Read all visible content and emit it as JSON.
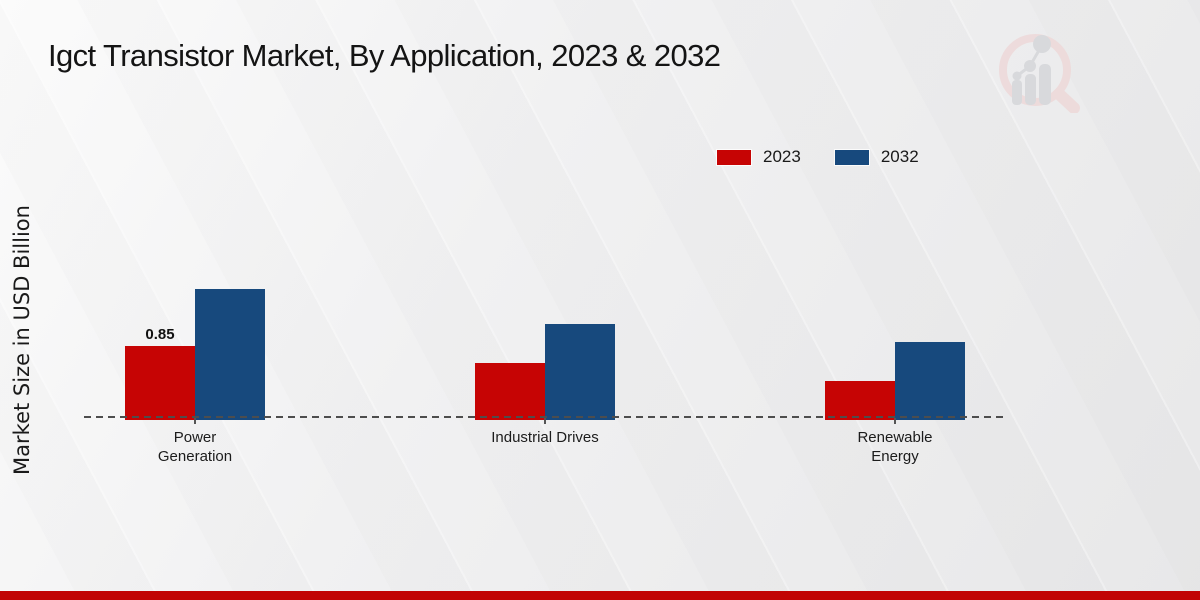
{
  "title": "Igct Transistor Market, By Application, 2023 & 2032",
  "y_axis_label": "Market Size in USD Billion",
  "legend": [
    {
      "label": "2023",
      "color": "#c60404"
    },
    {
      "label": "2032",
      "color": "#17497d"
    }
  ],
  "chart_data": {
    "type": "bar",
    "categories": [
      "Power Generation",
      "Industrial Drives",
      "Renewable Energy"
    ],
    "series": [
      {
        "name": "2023",
        "color": "#c60404",
        "values": [
          0.85,
          0.65,
          0.45
        ],
        "data_labels": [
          "0.85",
          "",
          ""
        ]
      },
      {
        "name": "2032",
        "color": "#17497d",
        "values": [
          1.5,
          1.1,
          0.9
        ],
        "data_labels": [
          "",
          "",
          ""
        ]
      }
    ],
    "title": "Igct Transistor Market, By Application, 2023 & 2032",
    "xlabel": "",
    "ylabel": "Market Size in USD Billion",
    "ylim": [
      0,
      1.6
    ],
    "grid": false,
    "legend_position": "top-right",
    "x_axis_style": "dashed"
  },
  "colors": {
    "series_2023": "#c60404",
    "series_2032": "#17497d",
    "axis": "#4d4d4d",
    "footer_strip": "#c10404",
    "text": "#1a1a1a"
  },
  "watermark": {
    "name": "market-research-chart-magnifier-logo"
  }
}
